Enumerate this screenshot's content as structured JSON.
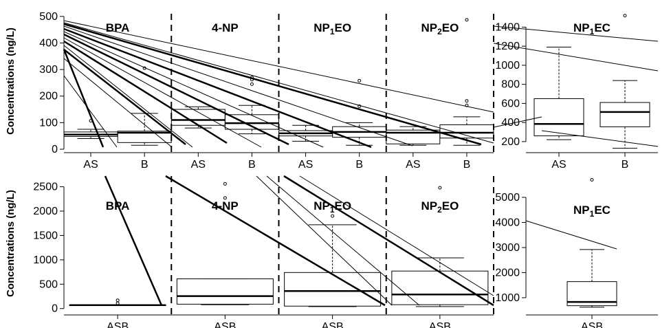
{
  "chart_data": [
    {
      "type": "box",
      "ylabel": "Concentrations (ng/L)",
      "yticks": [
        0,
        100,
        200,
        300,
        400,
        500
      ],
      "ylim": [
        0,
        510
      ],
      "panels": [
        {
          "label": "BPA",
          "groups": [
            {
              "name": "AS",
              "min": 40,
              "q1": 48,
              "median": 55,
              "q3": 65,
              "max": 75,
              "outliers": [
                107
              ]
            },
            {
              "name": "B",
              "min": 15,
              "q1": 25,
              "median": 62,
              "q3": 68,
              "max": 135,
              "outliers": [
                305
              ]
            }
          ]
        },
        {
          "label": "4-NP",
          "groups": [
            {
              "name": "AS",
              "min": 80,
              "q1": 90,
              "median": 110,
              "q3": 150,
              "max": 160,
              "outliers": []
            },
            {
              "name": "B",
              "min": 58,
              "q1": 75,
              "median": 98,
              "q3": 130,
              "max": 165,
              "outliers": [
                245,
                262,
                270
              ]
            }
          ]
        },
        {
          "label": "NP1EO",
          "label_main": "NP",
          "label_sub": "1",
          "label_tail": "EO",
          "groups": [
            {
              "name": "AS",
              "min": 30,
              "q1": 50,
              "median": 60,
              "q3": 70,
              "max": 90,
              "outliers": []
            },
            {
              "name": "B",
              "min": 15,
              "q1": 45,
              "median": 65,
              "q3": 85,
              "max": 100,
              "outliers": [
                162,
                258
              ]
            }
          ]
        },
        {
          "label": "NP2EO",
          "label_main": "NP",
          "label_sub": "2",
          "label_tail": "EO",
          "groups": [
            {
              "name": "AS",
              "min": 15,
              "q1": 20,
              "median": 62,
              "q3": 72,
              "max": 85,
              "outliers": []
            },
            {
              "name": "B",
              "min": 15,
              "q1": 42,
              "median": 62,
              "q3": 92,
              "max": 122,
              "outliers": [
                165,
                182,
                487
              ]
            }
          ]
        }
      ]
    },
    {
      "type": "box",
      "yticks": [
        200,
        400,
        600,
        800,
        1000,
        1200,
        1400
      ],
      "ylim": [
        120,
        1540
      ],
      "panels": [
        {
          "label": "NP1EC",
          "label_main": "NP",
          "label_sub": "1",
          "label_tail": "EC",
          "groups": [
            {
              "name": "AS",
              "min": 220,
              "q1": 260,
              "median": 385,
              "q3": 650,
              "max": 1190,
              "outliers": []
            },
            {
              "name": "B",
              "min": 130,
              "q1": 355,
              "median": 510,
              "q3": 610,
              "max": 840,
              "outliers": [
                1520
              ]
            }
          ]
        }
      ]
    },
    {
      "type": "box",
      "ylabel": "Concentrations (ng/L)",
      "yticks": [
        0,
        500,
        1000,
        1500,
        2000,
        2500
      ],
      "ylim": [
        -60,
        2720
      ],
      "panels": [
        {
          "label": "BPA",
          "groups": [
            {
              "name": "ASB",
              "min": 60,
              "q1": 65,
              "median": 70,
              "q3": 75,
              "max": 80,
              "outliers": [
                110,
                170
              ]
            }
          ]
        },
        {
          "label": "4-NP",
          "groups": [
            {
              "name": "ASB",
              "min": 80,
              "q1": 90,
              "median": 255,
              "q3": 610,
              "max": 610,
              "outliers": [
                2270,
                2560
              ]
            }
          ]
        },
        {
          "label": "NP1EO",
          "label_main": "NP",
          "label_sub": "1",
          "label_tail": "EO",
          "groups": [
            {
              "name": "ASB",
              "min": 40,
              "q1": 50,
              "median": 360,
              "q3": 740,
              "max": 1720,
              "outliers": [
                1900
              ]
            }
          ]
        },
        {
          "label": "NP2EO",
          "label_main": "NP",
          "label_sub": "2",
          "label_tail": "EO",
          "groups": [
            {
              "name": "ASB",
              "min": 40,
              "q1": 80,
              "median": 290,
              "q3": 770,
              "max": 1040,
              "outliers": [
                2480
              ]
            }
          ]
        }
      ]
    },
    {
      "type": "box",
      "yticks": [
        1000,
        2000,
        3000,
        4000,
        5000
      ],
      "ylim": [
        450,
        5850
      ],
      "panels": [
        {
          "label": "NP1EC",
          "label_main": "NP",
          "label_sub": "1",
          "label_tail": "EC",
          "groups": [
            {
              "name": "ASB",
              "min": 620,
              "q1": 680,
              "median": 830,
              "q3": 1640,
              "max": 2920,
              "outliers": [
                5700
              ]
            }
          ]
        }
      ]
    }
  ]
}
